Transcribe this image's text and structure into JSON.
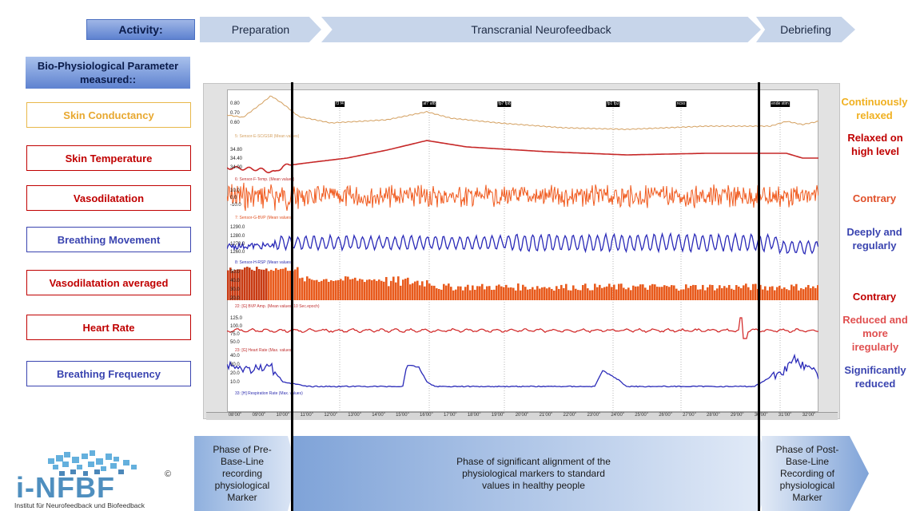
{
  "header": {
    "activity_label": "Activity:",
    "phases": [
      "Preparation",
      "Transcranial Neurofeedback",
      "Debriefing"
    ]
  },
  "parameters_title": "Bio-Physiological Parameter measured::",
  "parameters": [
    {
      "label": "Skin Conductancy",
      "color": "#e8b84a",
      "result": "Continuously relaxed",
      "result_color": "#f0b020"
    },
    {
      "label": "Skin Temperature",
      "color": "#c00000",
      "result": "Relaxed on high level",
      "result_color": "#c00000"
    },
    {
      "label": "Vasodilatation",
      "color": "#c00000",
      "result": "Contrary",
      "result_color": "#e0502a"
    },
    {
      "label": "Breathing Movement",
      "color": "#3a44b0",
      "result": "Deeply and regularly",
      "result_color": "#3a44b0"
    },
    {
      "label": "Vasodilatation averaged",
      "color": "#c00000",
      "result": "Contrary",
      "result_color": "#c00000"
    },
    {
      "label": "Heart Rate",
      "color": "#c00000",
      "result": "Reduced and more iregularly",
      "result_color": "#e05050"
    },
    {
      "label": "Breathing Frequency",
      "color": "#3a44b0",
      "result": "Significantly reduced",
      "result_color": "#3a44b0"
    }
  ],
  "chart": {
    "markers": [
      "f3 f4",
      "af7 af8",
      "fp7 fp8",
      "fp1 fp2",
      "ncso",
      "ende stim"
    ],
    "time_ticks": [
      "08'00\"",
      "09'00\"",
      "10'00\"",
      "11'00\"",
      "12'00\"",
      "13'00\"",
      "14'00\"",
      "15'00\"",
      "16'00\"",
      "17'00\"",
      "18'00\"",
      "19'00\"",
      "20'00\"",
      "21'00\"",
      "22'00\"",
      "23'00\"",
      "24'00\"",
      "25'00\"",
      "26'00\"",
      "27'00\"",
      "28'00\"",
      "29'00\"",
      "30'00\"",
      "31'00\"",
      "32'00\""
    ],
    "channels": [
      {
        "name": "5: Sensor-E-SC/GSR (Mean values)",
        "color": "#d4a060",
        "yticks": [
          "0.80",
          "0.70",
          "0.60"
        ]
      },
      {
        "name": "6: Sensor-F-Temp. (Mean values)",
        "color": "#c03030",
        "yticks": [
          "34.80",
          "34.40",
          "34.00"
        ]
      },
      {
        "name": "7: Sensor-G-BVP (Mean values)",
        "color": "#e05020",
        "yticks": [
          "10.0",
          "0.0",
          "-10.0"
        ]
      },
      {
        "name": "8: Sensor-H-RSP (Mean values)",
        "color": "#3030b0",
        "yticks": [
          "1290.0",
          "1280.0",
          "1270.0",
          "1260.0"
        ]
      },
      {
        "name": "22: [G] BVP Amp. (Mean values, 10 Sec.epoch)",
        "color": "#c03030",
        "yticks": [
          "50.0",
          "40.0",
          "30.0",
          "20.0"
        ]
      },
      {
        "name": "23: [G] Heart Rate (Max. values)",
        "color": "#c03030",
        "yticks": [
          "125.0",
          "100.0",
          "75.0",
          "50.0"
        ]
      },
      {
        "name": "33: [H] Respiration Rate (Max. values)",
        "color": "#3030b0",
        "yticks": [
          "40.0",
          "30.0",
          "20.0",
          "10.0"
        ]
      }
    ]
  },
  "bottom_phases": [
    "Phase of Pre-Base-Line recording physiological Marker",
    "Phase of significant alignment of the physiological markers to standard values in healthy people",
    "Phase of Post-Base-Line Recording of physiological Marker"
  ],
  "logo": {
    "text": "i-NFBF",
    "mark": "©",
    "subtitle": "Institut für Neurofeedback und Biofeedback"
  }
}
